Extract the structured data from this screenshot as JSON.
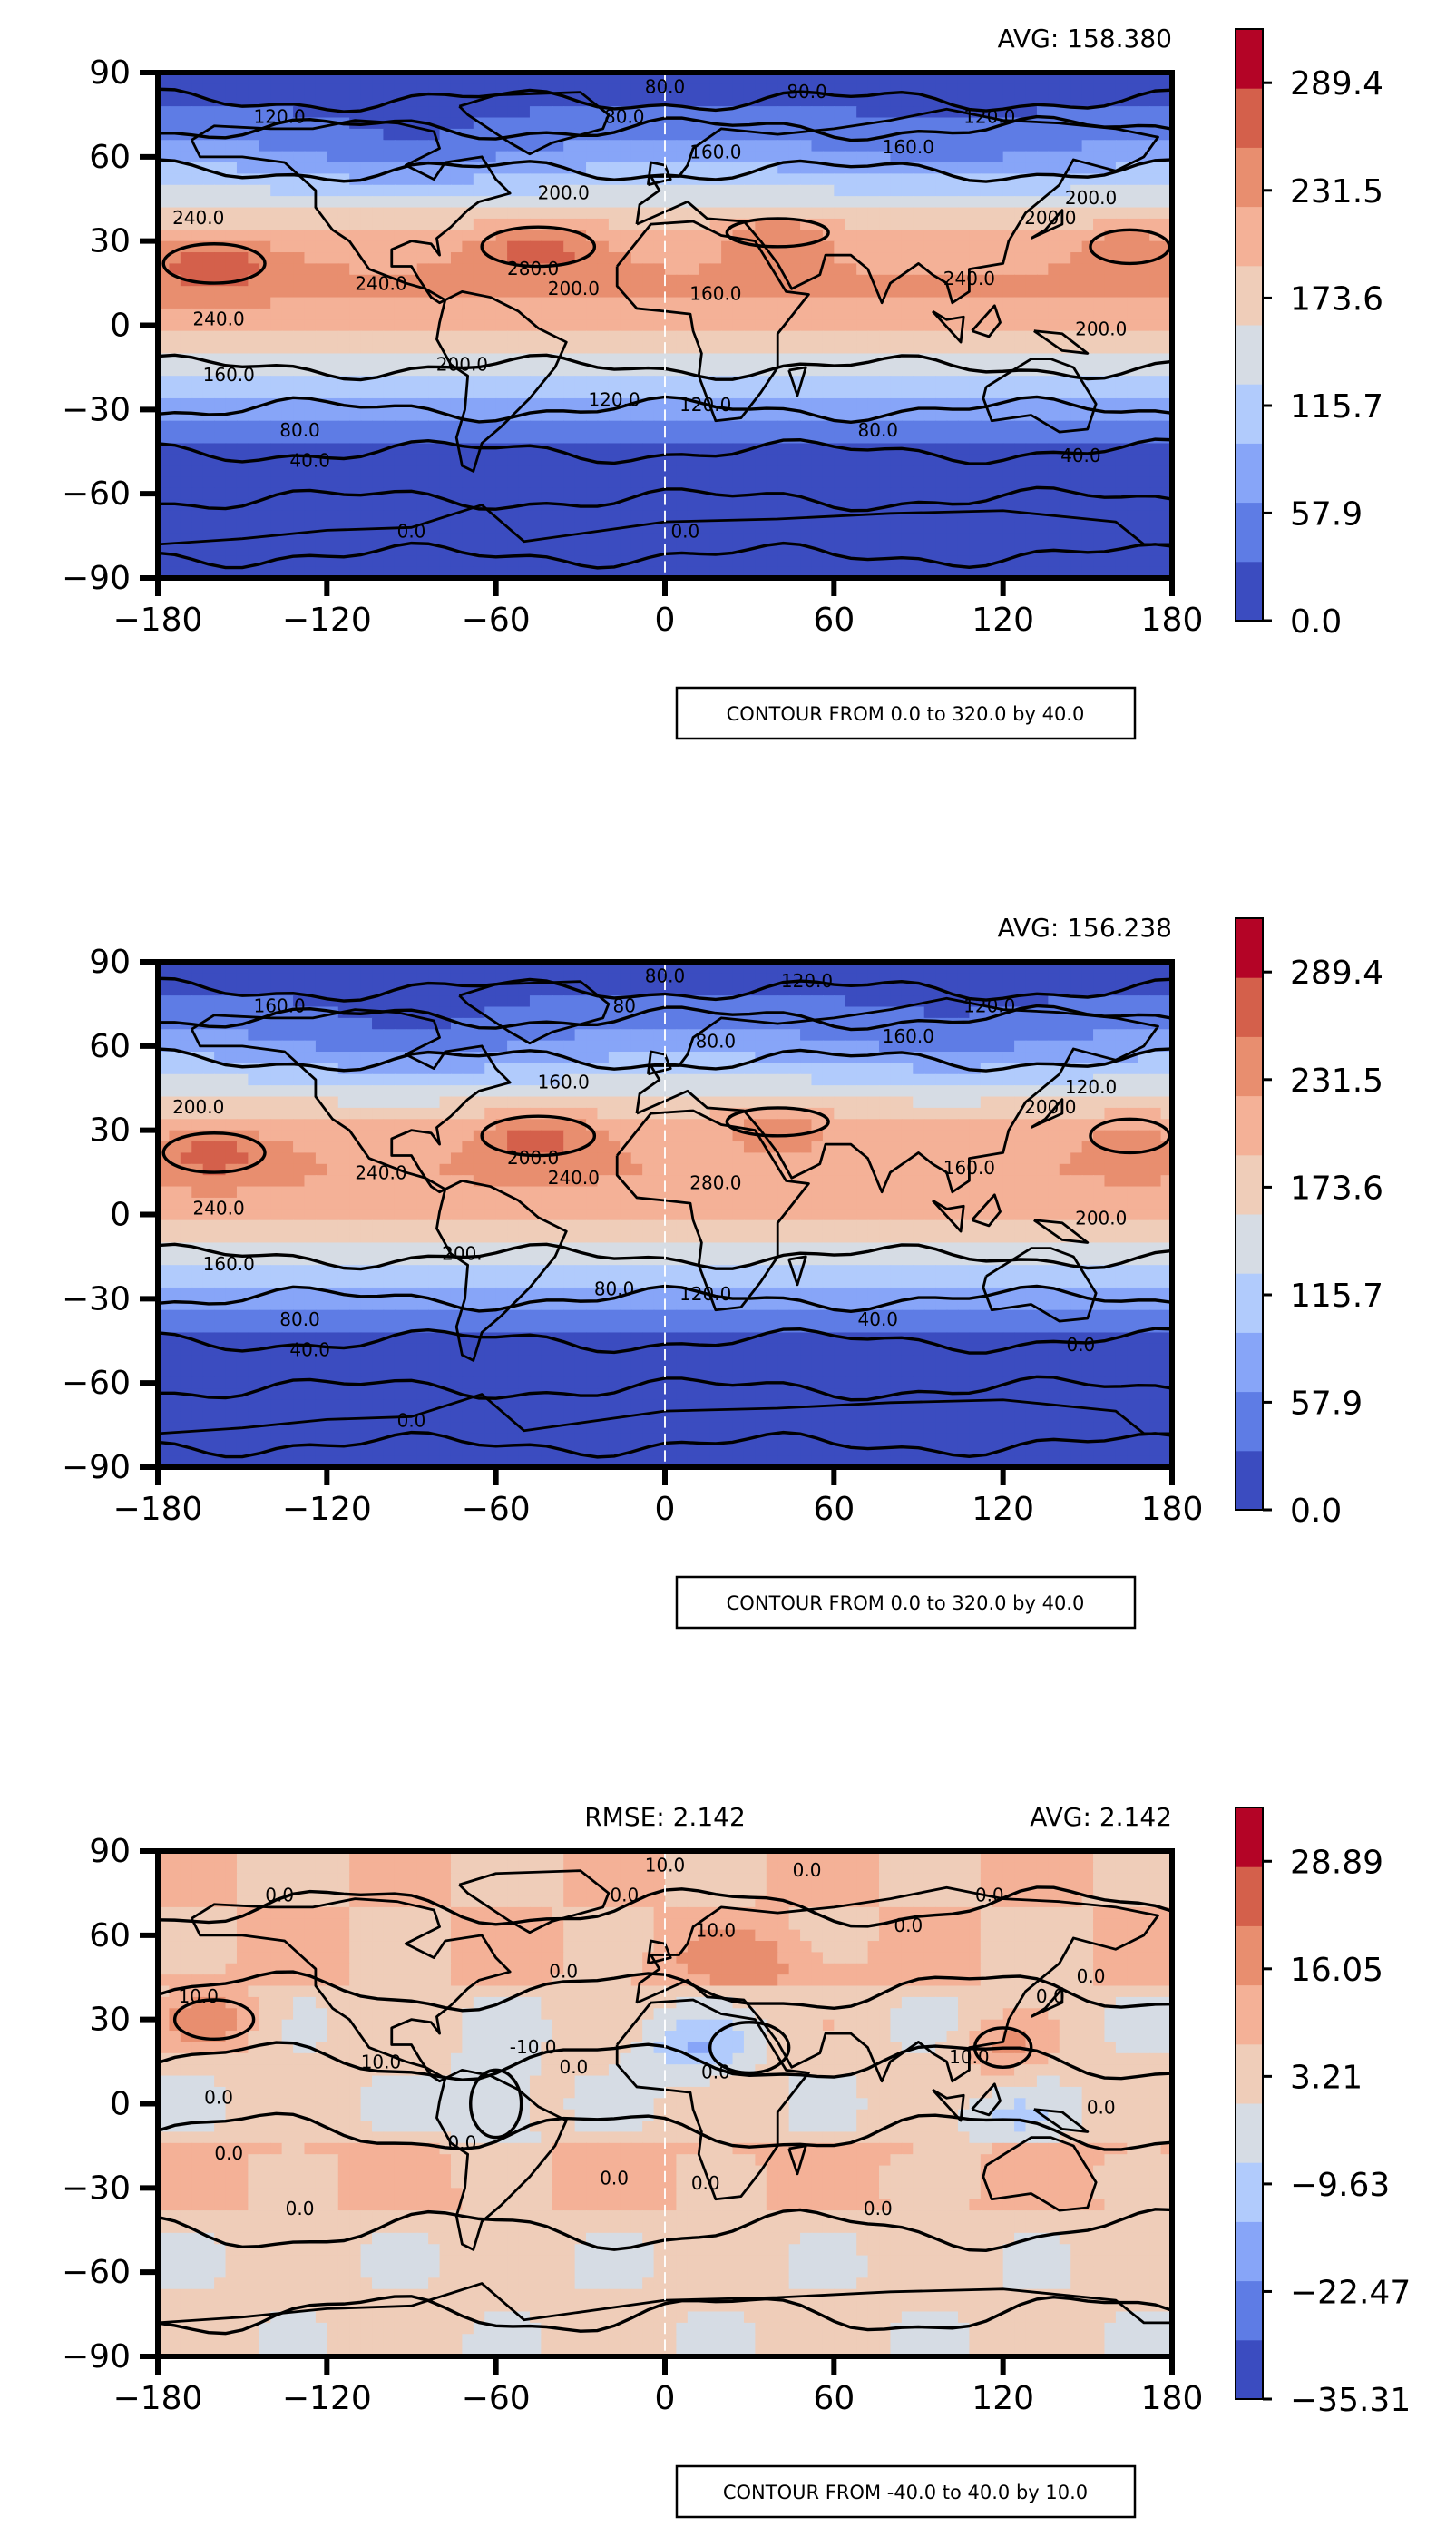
{
  "panels": [
    {
      "avg_label": "AVG: 158.380",
      "rmse_label": "",
      "contour_note": "CONTOUR FROM 0.0 to 320.0 by 40.0",
      "colorbar_ticks": [
        "289.4",
        "231.5",
        "173.6",
        "115.7",
        "57.9",
        "0.0"
      ],
      "contour_labels": [
        "80.0",
        "80.0",
        "80.0",
        "120.0",
        "120.0",
        "160.0",
        "160.0",
        "200.0",
        "200.0",
        "240.0",
        "240.0",
        "240.0",
        "280.0",
        "200.0",
        "160.0",
        "200.0",
        "240.0",
        "200.0",
        "160.0",
        "200.0",
        "120.0",
        "120.0",
        "80.0",
        "80.0",
        "40.0",
        "40.0",
        "0.0",
        "0.0"
      ]
    },
    {
      "avg_label": "AVG: 156.238",
      "rmse_label": "",
      "contour_note": "CONTOUR FROM 0.0 to 320.0 by 40.0",
      "colorbar_ticks": [
        "289.4",
        "231.5",
        "173.6",
        "115.7",
        "57.9",
        "0.0"
      ],
      "contour_labels": [
        "80.0",
        "80",
        "120.0",
        "160.0",
        "120.0",
        "80.0",
        "160.0",
        "160.0",
        "200.0",
        "200.0",
        "240.0",
        "240.0",
        "200.0",
        "240.0",
        "280.0",
        "200.0",
        "160.0",
        "200.",
        "160.0",
        "120.0",
        "80.0",
        "120.0",
        "80.0",
        "40.0",
        "40.0",
        "0.0",
        "0.0"
      ]
    },
    {
      "avg_label": "AVG: 2.142",
      "rmse_label": "RMSE: 2.142",
      "contour_note": "CONTOUR FROM -40.0 to 40.0 by 10.0",
      "colorbar_ticks": [
        "28.89",
        "16.05",
        "3.21",
        "−9.63",
        "−22.47",
        "−35.31"
      ],
      "contour_labels": [
        "10.0",
        "0.0",
        "0.0",
        "0.0",
        "0.0",
        "10.0",
        "0.0",
        "0.0",
        "0.0",
        "10.0",
        "10.0",
        "0.0",
        "-10.0",
        "0.0",
        "0.0",
        "0.0",
        "10.0",
        "0.0",
        "0.0",
        "0.0",
        "0.0",
        "0.0",
        "0.0",
        "0.0"
      ]
    }
  ],
  "axes": {
    "x_ticks": [
      "−180",
      "−120",
      "−60",
      "0",
      "60",
      "120",
      "180"
    ],
    "y_ticks": [
      "90",
      "60",
      "30",
      "0",
      "−30",
      "−60",
      "−90"
    ]
  },
  "colormap": [
    "#3b4cc0",
    "#5e7ce5",
    "#87a5f8",
    "#b1cbfc",
    "#d6dce4",
    "#efcdb9",
    "#f4b197",
    "#e88e6f",
    "#d4604b",
    "#b40426"
  ],
  "chart_data": [
    {
      "type": "heatmap",
      "xlabel": "",
      "ylabel": "",
      "xlim": [
        -180,
        180
      ],
      "ylim": [
        -90,
        90
      ],
      "x_ticks": [
        -180,
        -120,
        -60,
        0,
        60,
        120,
        180
      ],
      "y_ticks": [
        90,
        60,
        30,
        0,
        -30,
        -60,
        -90
      ],
      "avg": 158.38,
      "color_range": [
        0.0,
        318.3
      ],
      "colorbar_ticks": [
        289.4,
        231.5,
        173.6,
        115.7,
        57.9,
        0.0
      ],
      "contour_levels": [
        0,
        40,
        80,
        120,
        160,
        200,
        240,
        280,
        320
      ],
      "field": "zonal_a"
    },
    {
      "type": "heatmap",
      "xlabel": "",
      "ylabel": "",
      "xlim": [
        -180,
        180
      ],
      "ylim": [
        -90,
        90
      ],
      "x_ticks": [
        -180,
        -120,
        -60,
        0,
        60,
        120,
        180
      ],
      "y_ticks": [
        90,
        60,
        30,
        0,
        -30,
        -60,
        -90
      ],
      "avg": 156.238,
      "color_range": [
        0.0,
        318.3
      ],
      "colorbar_ticks": [
        289.4,
        231.5,
        173.6,
        115.7,
        57.9,
        0.0
      ],
      "contour_levels": [
        0,
        40,
        80,
        120,
        160,
        200,
        240,
        280,
        320
      ],
      "field": "zonal_b"
    },
    {
      "type": "heatmap",
      "xlabel": "",
      "ylabel": "",
      "xlim": [
        -180,
        180
      ],
      "ylim": [
        -90,
        90
      ],
      "x_ticks": [
        -180,
        -120,
        -60,
        0,
        60,
        120,
        180
      ],
      "y_ticks": [
        90,
        60,
        30,
        0,
        -30,
        -60,
        -90
      ],
      "avg": 2.142,
      "rmse": 2.142,
      "color_range": [
        -35.31,
        35.31
      ],
      "colorbar_ticks": [
        28.89,
        16.05,
        3.21,
        -9.63,
        -22.47,
        -35.31
      ],
      "contour_levels": [
        -40,
        -30,
        -20,
        -10,
        0,
        10,
        20,
        30,
        40
      ],
      "field": "difference"
    }
  ]
}
